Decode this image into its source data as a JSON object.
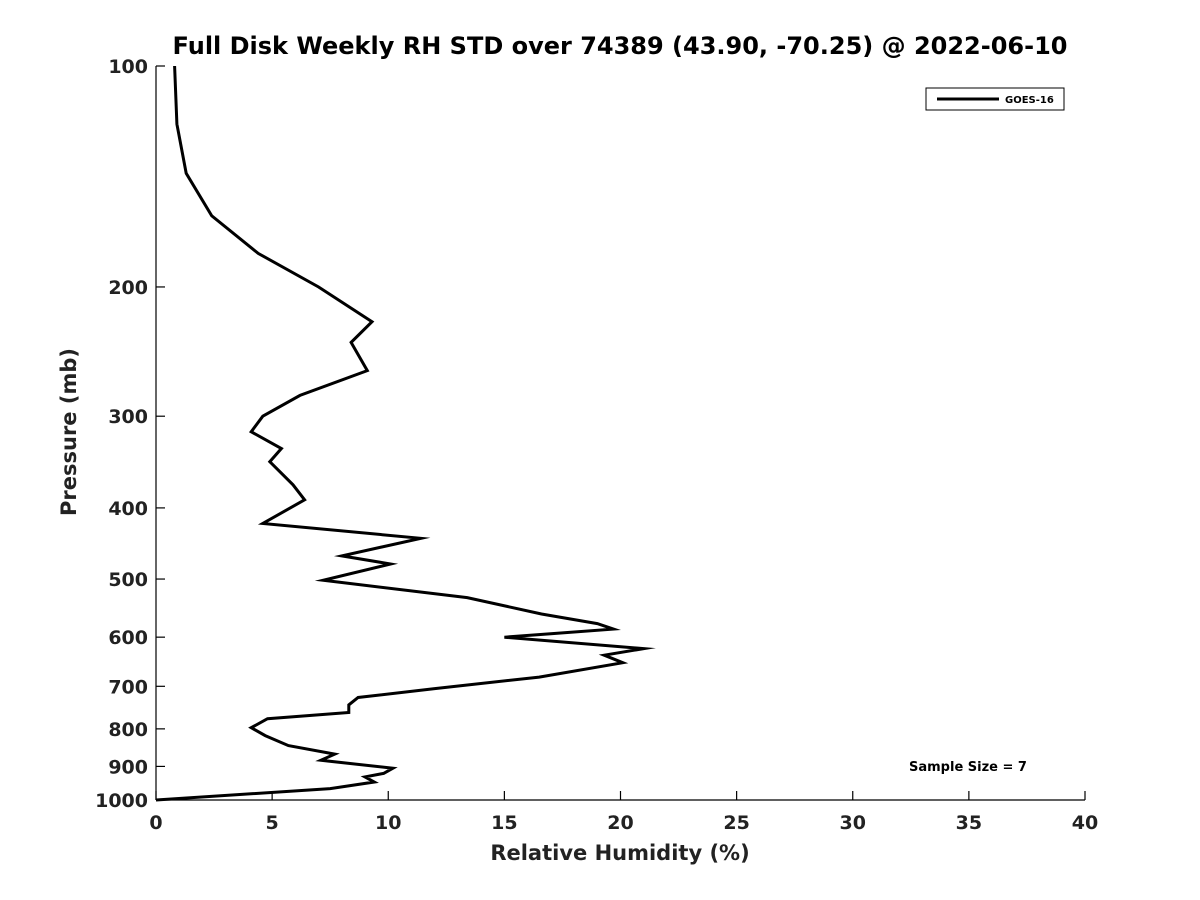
{
  "chart_data": {
    "type": "line",
    "title": "Full Disk Weekly RH STD over 74389 (43.90, -70.25) @ 2022-06-10",
    "xlabel": "Relative Humidity (%)",
    "ylabel": "Pressure (mb)",
    "xlim": [
      0,
      40
    ],
    "ylim": [
      1000,
      100
    ],
    "y_scale": "log",
    "x_ticks": [
      0,
      5,
      10,
      15,
      20,
      25,
      30,
      35,
      40
    ],
    "y_ticks": [
      100,
      200,
      300,
      400,
      500,
      600,
      700,
      800,
      900,
      1000
    ],
    "grid": false,
    "legend": {
      "position": "top-right",
      "entries": [
        "GOES-16"
      ]
    },
    "annotation": "Sample Size = 7",
    "series": [
      {
        "name": "GOES-16",
        "color": "#000000",
        "points": [
          [
            0.8,
            100
          ],
          [
            0.9,
            120
          ],
          [
            1.3,
            140
          ],
          [
            2.4,
            160
          ],
          [
            4.4,
            180
          ],
          [
            7.0,
            200
          ],
          [
            9.3,
            223
          ],
          [
            8.4,
            238
          ],
          [
            9.1,
            260
          ],
          [
            6.2,
            281
          ],
          [
            4.6,
            300
          ],
          [
            4.1,
            315
          ],
          [
            5.4,
            332
          ],
          [
            4.9,
            346
          ],
          [
            5.9,
            372
          ],
          [
            6.4,
            390
          ],
          [
            4.6,
            420
          ],
          [
            11.4,
            440
          ],
          [
            8.0,
            465
          ],
          [
            10.1,
            477
          ],
          [
            7.2,
            502
          ],
          [
            13.4,
            530
          ],
          [
            16.6,
            558
          ],
          [
            19.0,
            575
          ],
          [
            19.7,
            585
          ],
          [
            15.0,
            600
          ],
          [
            21.0,
            622
          ],
          [
            19.3,
            635
          ],
          [
            20.1,
            650
          ],
          [
            16.5,
            680
          ],
          [
            12.0,
            705
          ],
          [
            8.7,
            725
          ],
          [
            8.3,
            742
          ],
          [
            8.3,
            760
          ],
          [
            4.8,
            775
          ],
          [
            4.1,
            797
          ],
          [
            4.7,
            817
          ],
          [
            5.7,
            843
          ],
          [
            7.7,
            866
          ],
          [
            7.1,
            883
          ],
          [
            10.2,
            905
          ],
          [
            9.8,
            920
          ],
          [
            9.0,
            930
          ],
          [
            9.4,
            945
          ],
          [
            7.5,
            965
          ],
          [
            0.0,
            1000
          ]
        ]
      }
    ]
  }
}
